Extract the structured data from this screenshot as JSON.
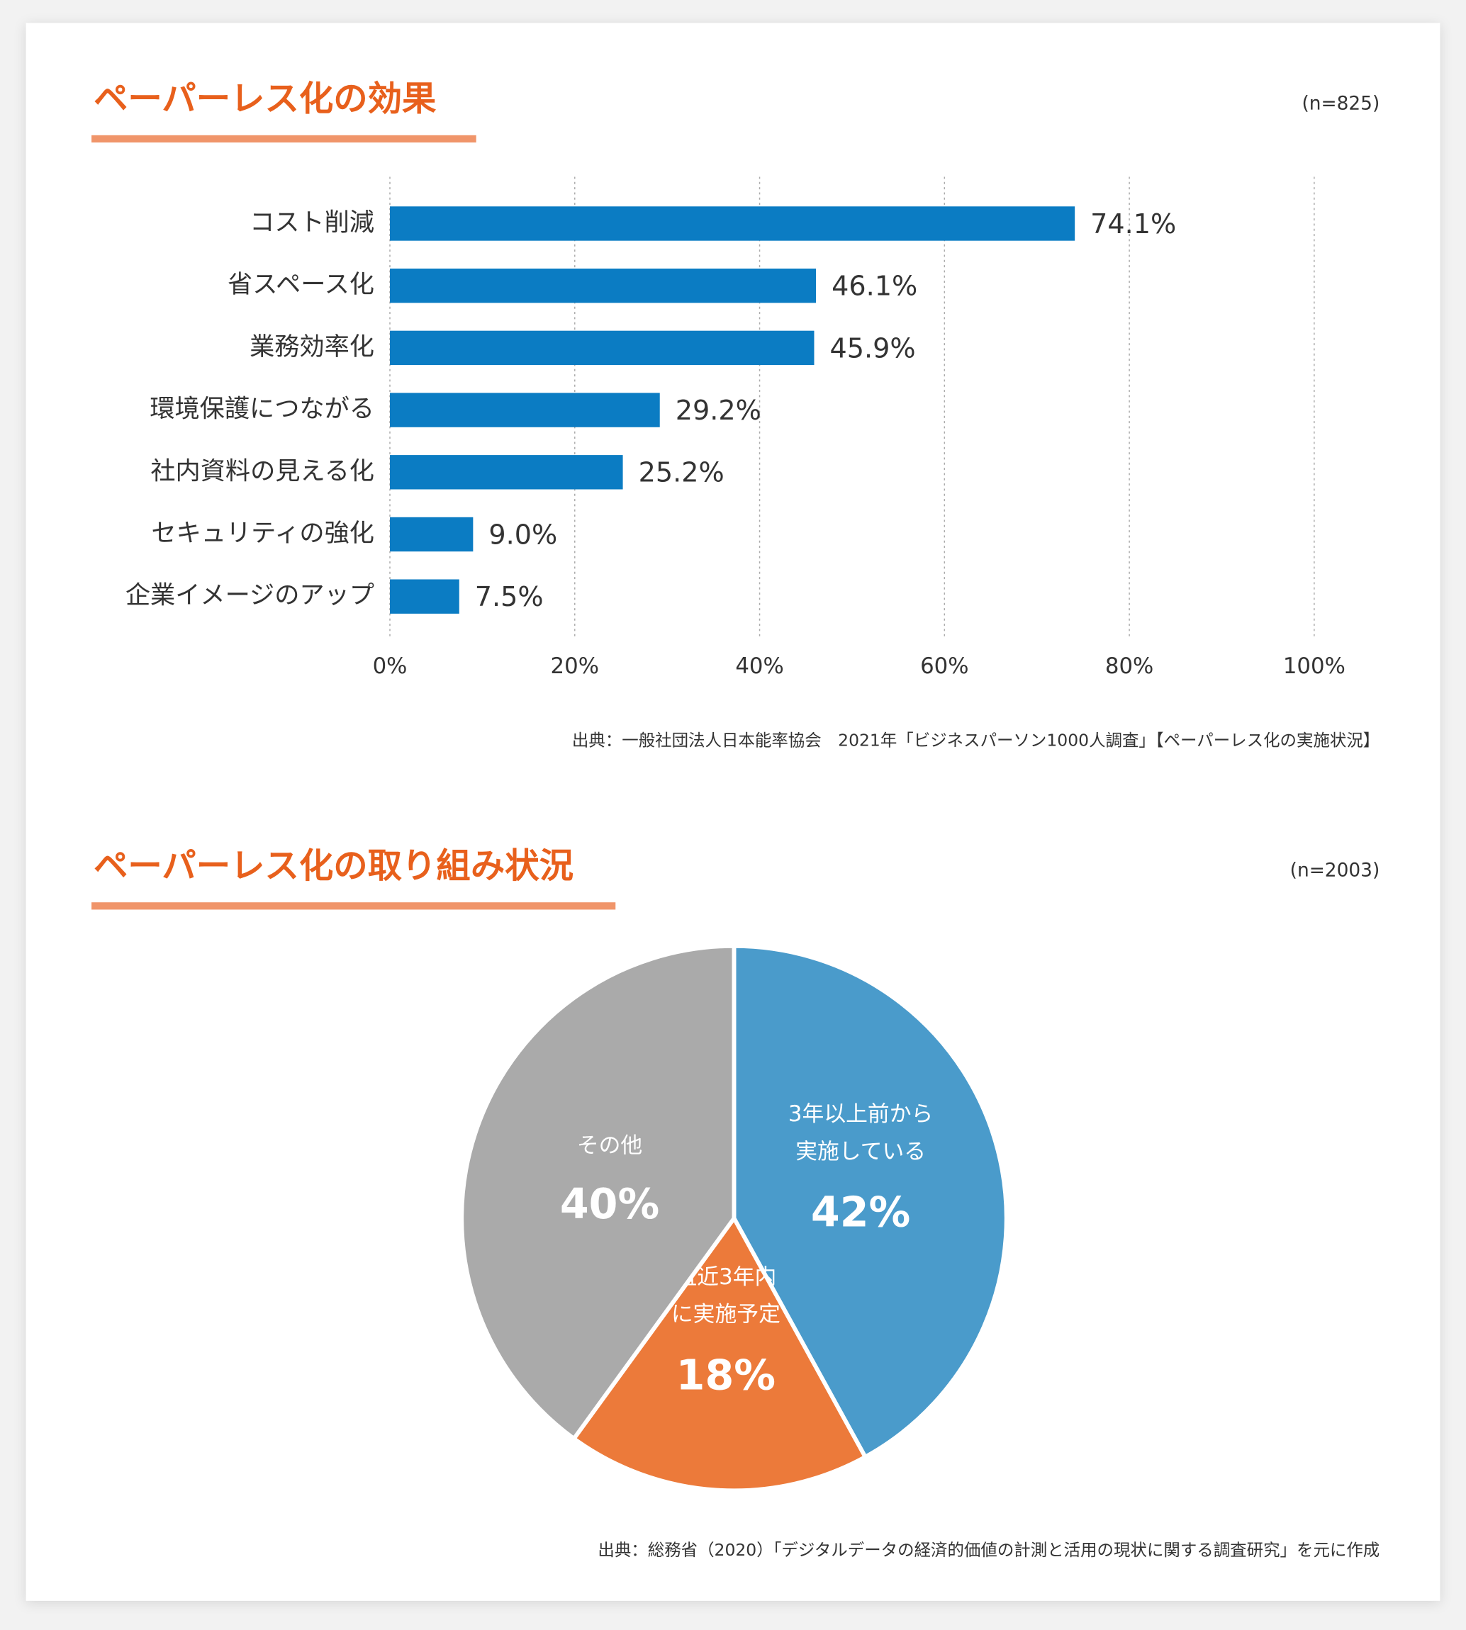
{
  "chart_data": [
    {
      "type": "bar",
      "orientation": "horizontal",
      "title": "ペーパーレス化の効果",
      "note": "(n=825)",
      "categories": [
        "コスト削減",
        "省スペース化",
        "業務効率化",
        "環境保護につながる",
        "社内資料の見える化",
        "セキュリティの強化",
        "企業イメージのアップ"
      ],
      "values": [
        74.1,
        46.1,
        45.9,
        29.2,
        25.2,
        9.0,
        7.5
      ],
      "value_labels": [
        "74.1%",
        "46.1%",
        "45.9%",
        "29.2%",
        "25.2%",
        "9.0%",
        "7.5%"
      ],
      "color": "#0b7cc3",
      "xlim": [
        0,
        100
      ],
      "xticks": [
        {
          "value": 0,
          "label": "0%"
        },
        {
          "value": 20,
          "label": "20%"
        },
        {
          "value": 40,
          "label": "40%"
        },
        {
          "value": 60,
          "label": "60%"
        },
        {
          "value": 80,
          "label": "80%"
        },
        {
          "value": 100,
          "label": "100%"
        }
      ],
      "grid": true,
      "source": "出典：一般社団法人日本能率協会　2021年「ビジネスパーソン1000人調査」【ペーパーレス化の実施状況】"
    },
    {
      "type": "pie",
      "title": "ペーパーレス化の取り組み状況",
      "note": "(n=2003)",
      "categories": [
        [
          "3年以上前から",
          "実施している"
        ],
        [
          "直近3年内",
          "に実施予定"
        ],
        [
          "その他"
        ]
      ],
      "values": [
        42,
        18,
        40
      ],
      "value_labels": [
        "42%",
        "18%",
        "40%"
      ],
      "colors": [
        "#4a9bcb",
        "#ec7a3a",
        "#aaaaaa"
      ],
      "source": "出典：総務省（2020）「デジタルデータの経済的価値の計測と活用の現状に関する調査研究」を元に作成"
    }
  ]
}
